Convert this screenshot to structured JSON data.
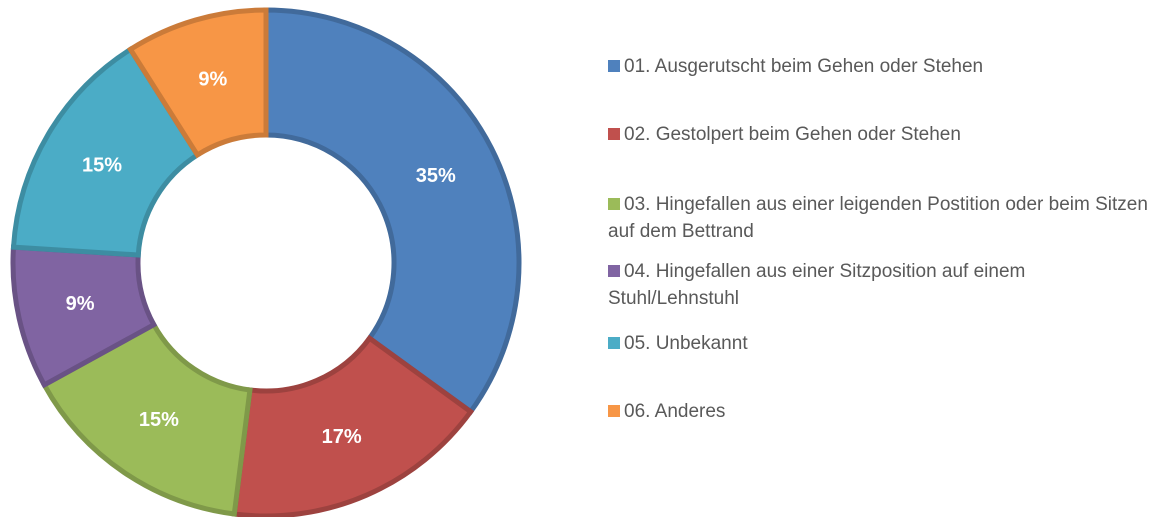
{
  "chart_data": {
    "type": "donut",
    "categories": [
      "01. Ausgerutscht beim Gehen oder Stehen",
      "02. Gestolpert beim Gehen oder Stehen",
      "03. Hingefallen aus einer leigenden Postition oder beim Sitzen auf dem Bettrand",
      "04. Hingefallen aus einer Sitzposition auf einem Stuhl/Lehnstuhl",
      "05. Unbekannt",
      "06. Anderes"
    ],
    "values": [
      35,
      17,
      15,
      9,
      15,
      9
    ],
    "value_labels": [
      "35%",
      "17%",
      "15%",
      "9%",
      "15%",
      "9%"
    ],
    "colors": [
      "#4f81bd",
      "#c0504d",
      "#9bbb59",
      "#8064a2",
      "#4bacc6",
      "#f79646"
    ],
    "legend": "right"
  }
}
